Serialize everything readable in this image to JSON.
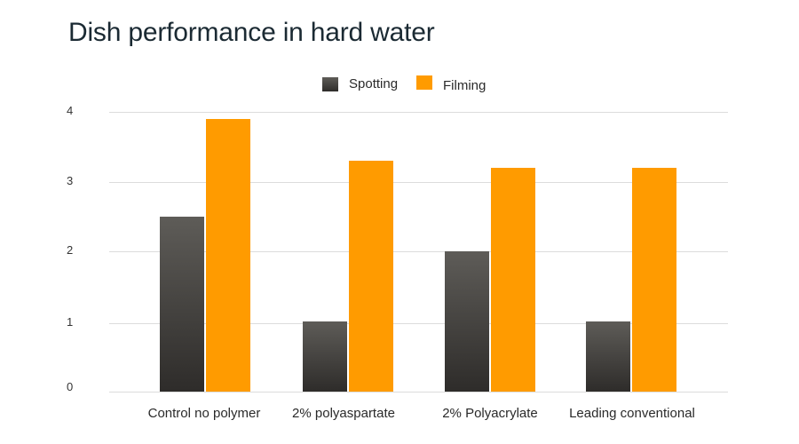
{
  "chart_data": {
    "type": "bar",
    "title": "Dish performance in hard water",
    "xlabel": "",
    "ylabel": "",
    "categories": [
      "Control no polymer",
      "2% polyaspartate",
      "2% Polyacrylate",
      "Leading conventional"
    ],
    "series": [
      {
        "name": "Spotting",
        "color": "#3f3d3a",
        "values": [
          2.5,
          1.0,
          2.0,
          1.0
        ]
      },
      {
        "name": "Filming",
        "color": "#ff9b00",
        "values": [
          3.9,
          3.3,
          3.2,
          3.2
        ]
      }
    ],
    "ylim": [
      0,
      4
    ],
    "yticks": [
      "0",
      "1",
      "2",
      "3",
      "4"
    ],
    "grid": true,
    "legend_position": "top"
  },
  "title": "Dish performance in hard water",
  "legend": [
    {
      "label": "Spotting",
      "color": "#3f3d3a"
    },
    {
      "label": "Filming",
      "color": "#ff9b00"
    }
  ],
  "y_axis": {
    "ticks": [
      "0",
      "1",
      "2",
      "3",
      "4"
    ]
  },
  "x_axis": {
    "labels": [
      "Control no polymer",
      "2% polyaspartate",
      "2% Polyacrylate",
      "Leading conventional"
    ]
  }
}
